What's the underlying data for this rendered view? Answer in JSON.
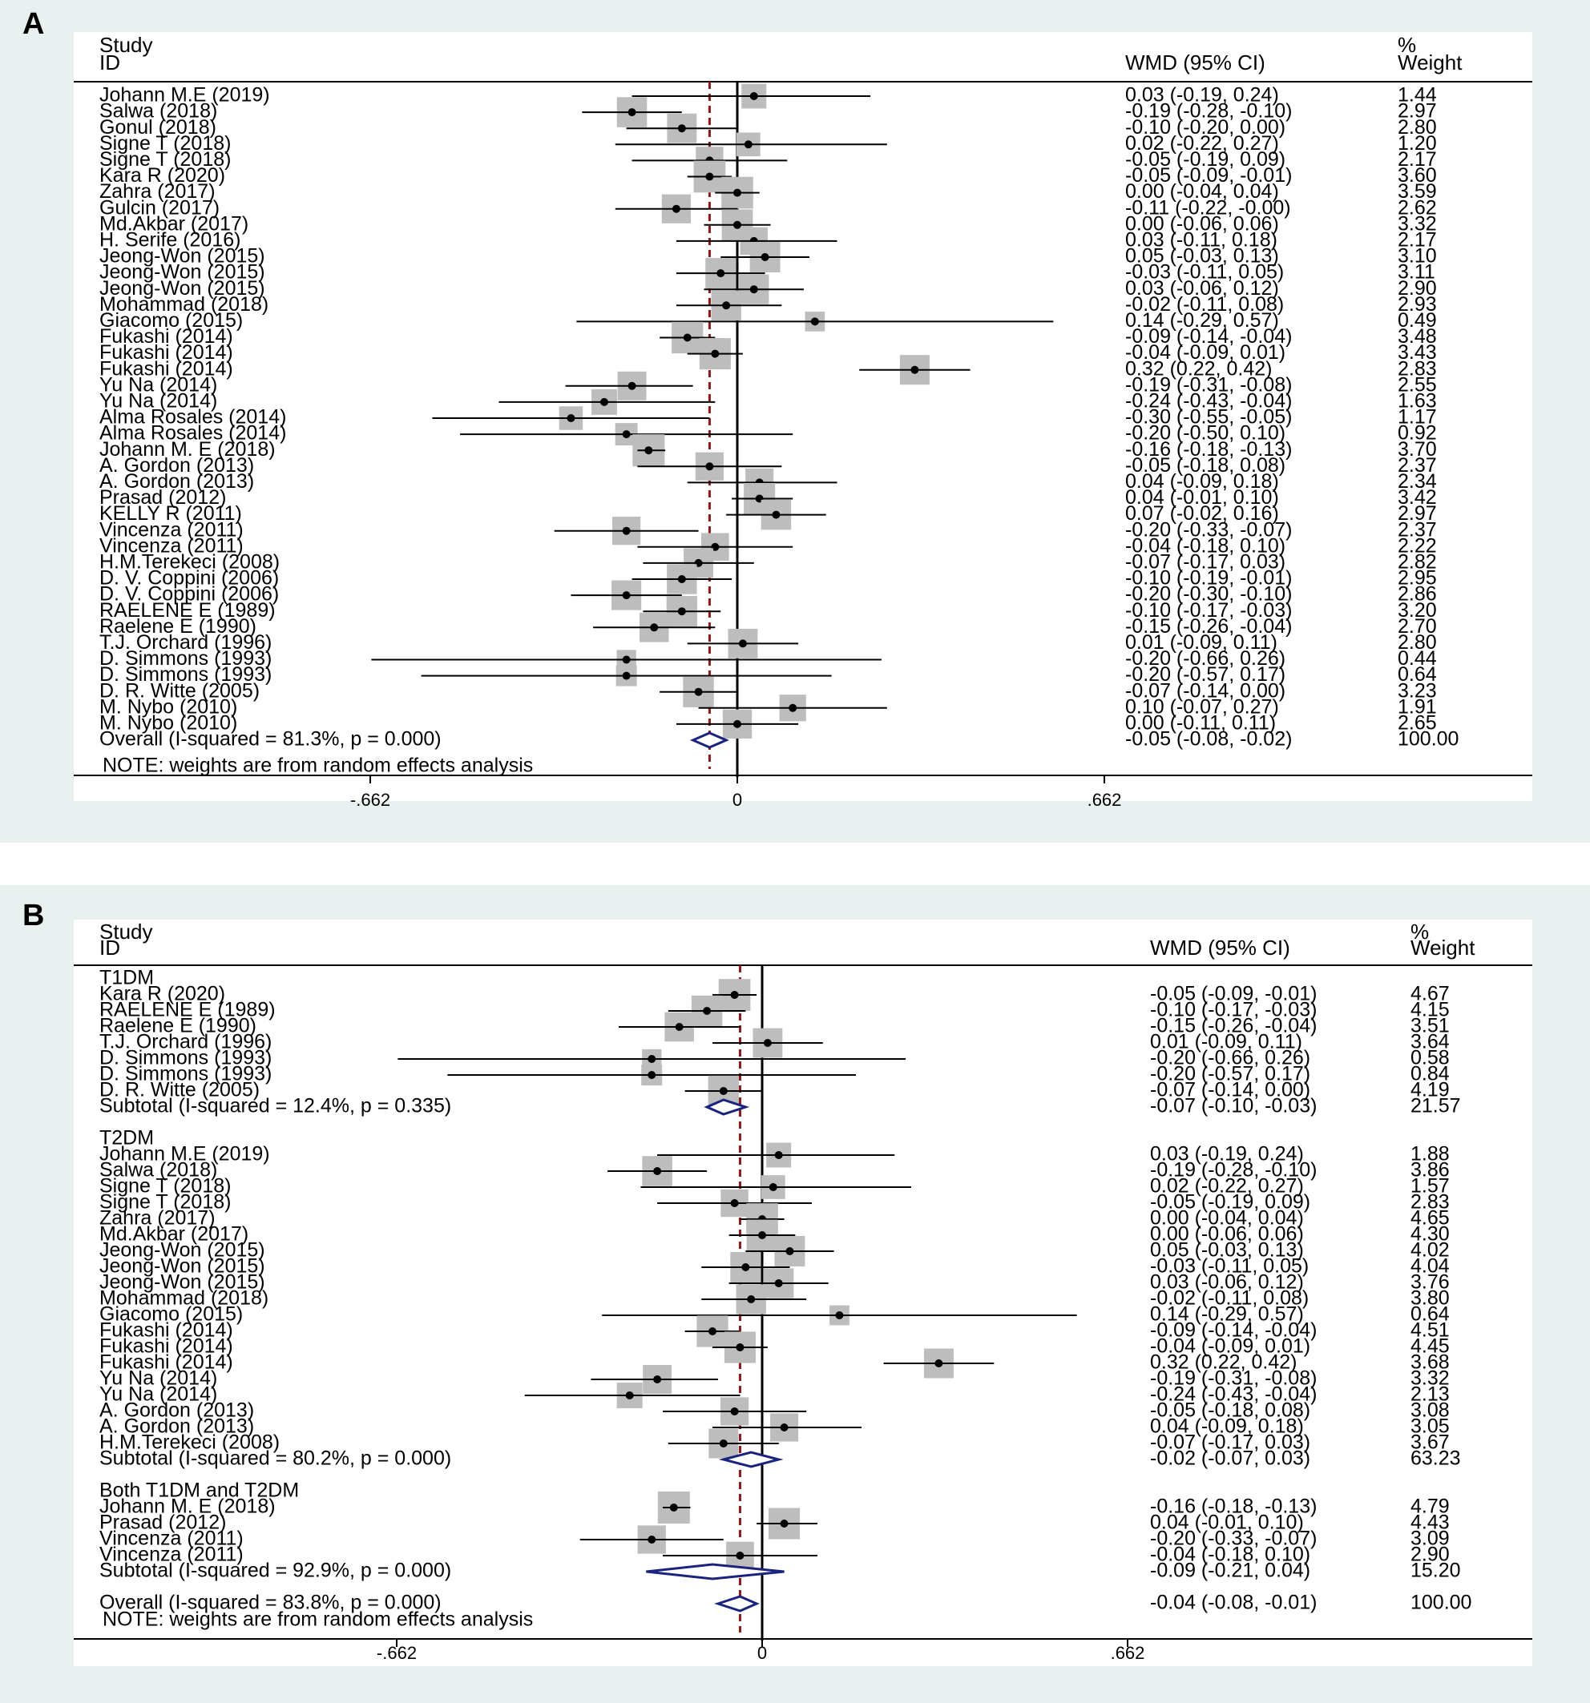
{
  "chart_data": [
    {
      "type": "forest",
      "panel_label": "A",
      "columns": {
        "study_header": [
          "Study",
          "ID"
        ],
        "effect_header": "WMD (95% CI)",
        "weight_header": [
          "%",
          "Weight"
        ]
      },
      "x_ticks": [
        -0.662,
        0,
        0.662
      ],
      "x_tick_labels": [
        "-.662",
        "0",
        ".662"
      ],
      "xlim": [
        -1.2,
        1.435
      ],
      "reference_line": -0.05,
      "studies": [
        {
          "label": "Johann M.E (2019)",
          "es": 0.03,
          "lo": -0.19,
          "hi": 0.24,
          "text": "0.03 (-0.19, 0.24)",
          "weight": "1.44"
        },
        {
          "label": "Salwa (2018)",
          "es": -0.19,
          "lo": -0.28,
          "hi": -0.1,
          "text": "-0.19 (-0.28, -0.10)",
          "weight": "2.97"
        },
        {
          "label": "Gonul (2018)",
          "es": -0.1,
          "lo": -0.2,
          "hi": 0.0,
          "text": "-0.10 (-0.20, 0.00)",
          "weight": "2.80"
        },
        {
          "label": "Signe T (2018)",
          "es": 0.02,
          "lo": -0.22,
          "hi": 0.27,
          "text": "0.02 (-0.22, 0.27)",
          "weight": "1.20"
        },
        {
          "label": "Signe T (2018)",
          "es": -0.05,
          "lo": -0.19,
          "hi": 0.09,
          "text": "-0.05 (-0.19, 0.09)",
          "weight": "2.17"
        },
        {
          "label": "Kara R (2020)",
          "es": -0.05,
          "lo": -0.09,
          "hi": -0.01,
          "text": "-0.05 (-0.09, -0.01)",
          "weight": "3.60"
        },
        {
          "label": "Zahra (2017)",
          "es": 0.0,
          "lo": -0.04,
          "hi": 0.04,
          "text": "0.00 (-0.04, 0.04)",
          "weight": "3.59"
        },
        {
          "label": "Gulcin (2017)",
          "es": -0.11,
          "lo": -0.22,
          "hi": -0.0,
          "text": "-0.11 (-0.22, -0.00)",
          "weight": "2.62"
        },
        {
          "label": "Md.Akbar (2017)",
          "es": 0.0,
          "lo": -0.06,
          "hi": 0.06,
          "text": "0.00 (-0.06, 0.06)",
          "weight": "3.32"
        },
        {
          "label": "H. Serife (2016)",
          "es": 0.03,
          "lo": -0.11,
          "hi": 0.18,
          "text": "0.03 (-0.11, 0.18)",
          "weight": "2.17"
        },
        {
          "label": "Jeong-Won (2015)",
          "es": 0.05,
          "lo": -0.03,
          "hi": 0.13,
          "text": "0.05 (-0.03, 0.13)",
          "weight": "3.10"
        },
        {
          "label": "Jeong-Won (2015)",
          "es": -0.03,
          "lo": -0.11,
          "hi": 0.05,
          "text": "-0.03 (-0.11, 0.05)",
          "weight": "3.11"
        },
        {
          "label": "Jeong-Won (2015)",
          "es": 0.03,
          "lo": -0.06,
          "hi": 0.12,
          "text": "0.03 (-0.06, 0.12)",
          "weight": "2.90"
        },
        {
          "label": "Mohammad (2018)",
          "es": -0.02,
          "lo": -0.11,
          "hi": 0.08,
          "text": "-0.02 (-0.11, 0.08)",
          "weight": "2.93"
        },
        {
          "label": "Giacomo (2015)",
          "es": 0.14,
          "lo": -0.29,
          "hi": 0.57,
          "text": "0.14 (-0.29, 0.57)",
          "weight": "0.49"
        },
        {
          "label": "Fukashi (2014)",
          "es": -0.09,
          "lo": -0.14,
          "hi": -0.04,
          "text": "-0.09 (-0.14, -0.04)",
          "weight": "3.48"
        },
        {
          "label": "Fukashi (2014)",
          "es": -0.04,
          "lo": -0.09,
          "hi": 0.01,
          "text": "-0.04 (-0.09, 0.01)",
          "weight": "3.43"
        },
        {
          "label": "Fukashi (2014)",
          "es": 0.32,
          "lo": 0.22,
          "hi": 0.42,
          "text": "0.32 (0.22, 0.42)",
          "weight": "2.83"
        },
        {
          "label": "Yu Na (2014)",
          "es": -0.19,
          "lo": -0.31,
          "hi": -0.08,
          "text": "-0.19 (-0.31, -0.08)",
          "weight": "2.55"
        },
        {
          "label": "Yu Na (2014)",
          "es": -0.24,
          "lo": -0.43,
          "hi": -0.04,
          "text": "-0.24 (-0.43, -0.04)",
          "weight": "1.63"
        },
        {
          "label": "Alma Rosales (2014)",
          "es": -0.3,
          "lo": -0.55,
          "hi": -0.05,
          "text": "-0.30 (-0.55, -0.05)",
          "weight": "1.17"
        },
        {
          "label": "Alma Rosales (2014)",
          "es": -0.2,
          "lo": -0.5,
          "hi": 0.1,
          "text": "-0.20 (-0.50, 0.10)",
          "weight": "0.92"
        },
        {
          "label": "Johann M. E (2018)",
          "es": -0.16,
          "lo": -0.18,
          "hi": -0.13,
          "text": "-0.16 (-0.18, -0.13)",
          "weight": "3.70"
        },
        {
          "label": "A. Gordon (2013)",
          "es": -0.05,
          "lo": -0.18,
          "hi": 0.08,
          "text": "-0.05 (-0.18, 0.08)",
          "weight": "2.37"
        },
        {
          "label": "A. Gordon (2013)",
          "es": 0.04,
          "lo": -0.09,
          "hi": 0.18,
          "text": "0.04 (-0.09, 0.18)",
          "weight": "2.34"
        },
        {
          "label": "Prasad (2012)",
          "es": 0.04,
          "lo": -0.01,
          "hi": 0.1,
          "text": "0.04 (-0.01, 0.10)",
          "weight": "3.42"
        },
        {
          "label": "KELLY R (2011)",
          "es": 0.07,
          "lo": -0.02,
          "hi": 0.16,
          "text": "0.07 (-0.02, 0.16)",
          "weight": "2.97"
        },
        {
          "label": "Vincenza (2011)",
          "es": -0.2,
          "lo": -0.33,
          "hi": -0.07,
          "text": "-0.20 (-0.33, -0.07)",
          "weight": "2.37"
        },
        {
          "label": "Vincenza (2011)",
          "es": -0.04,
          "lo": -0.18,
          "hi": 0.1,
          "text": "-0.04 (-0.18, 0.10)",
          "weight": "2.22"
        },
        {
          "label": "H.M.Terekeci (2008)",
          "es": -0.07,
          "lo": -0.17,
          "hi": 0.03,
          "text": "-0.07 (-0.17, 0.03)",
          "weight": "2.82"
        },
        {
          "label": "D. V. Coppini (2006)",
          "es": -0.1,
          "lo": -0.19,
          "hi": -0.01,
          "text": "-0.10 (-0.19, -0.01)",
          "weight": "2.95"
        },
        {
          "label": "D. V. Coppini (2006)",
          "es": -0.2,
          "lo": -0.3,
          "hi": -0.1,
          "text": "-0.20 (-0.30, -0.10)",
          "weight": "2.86"
        },
        {
          "label": "RAELENE E (1989)",
          "es": -0.1,
          "lo": -0.17,
          "hi": -0.03,
          "text": "-0.10 (-0.17, -0.03)",
          "weight": "3.20"
        },
        {
          "label": "Raelene E (1990)",
          "es": -0.15,
          "lo": -0.26,
          "hi": -0.04,
          "text": "-0.15 (-0.26, -0.04)",
          "weight": "2.70"
        },
        {
          "label": "T.J. Orchard (1996)",
          "es": 0.01,
          "lo": -0.09,
          "hi": 0.11,
          "text": "0.01 (-0.09, 0.11)",
          "weight": "2.80"
        },
        {
          "label": "D. Simmons (1993)",
          "es": -0.2,
          "lo": -0.66,
          "hi": 0.26,
          "text": "-0.20 (-0.66, 0.26)",
          "weight": "0.44"
        },
        {
          "label": "D. Simmons (1993)",
          "es": -0.2,
          "lo": -0.57,
          "hi": 0.17,
          "text": "-0.20 (-0.57, 0.17)",
          "weight": "0.64"
        },
        {
          "label": "D. R. Witte (2005)",
          "es": -0.07,
          "lo": -0.14,
          "hi": 0.0,
          "text": "-0.07 (-0.14, 0.00)",
          "weight": "3.23"
        },
        {
          "label": "M. Nybo (2010)",
          "es": 0.1,
          "lo": -0.07,
          "hi": 0.27,
          "text": "0.10 (-0.07, 0.27)",
          "weight": "1.91"
        },
        {
          "label": "M. Nybo (2010)",
          "es": 0.0,
          "lo": -0.11,
          "hi": 0.11,
          "text": "0.00 (-0.11, 0.11)",
          "weight": "2.65"
        }
      ],
      "overall": {
        "label": "Overall  (I-squared = 81.3%, p = 0.000)",
        "es": -0.05,
        "lo": -0.08,
        "hi": -0.02,
        "text": "-0.05 (-0.08, -0.02)",
        "weight": "100.00"
      },
      "note": "NOTE: weights are from random effects analysis"
    },
    {
      "type": "forest",
      "panel_label": "B",
      "columns": {
        "study_header": [
          "Study",
          "ID"
        ],
        "effect_header": "WMD (95% CI)",
        "weight_header": [
          "%",
          "Weight"
        ]
      },
      "x_ticks": [
        -0.662,
        0,
        0.662
      ],
      "x_tick_labels": [
        "-.662",
        "0",
        ".662"
      ],
      "xlim": [
        -1.24,
        1.35
      ],
      "reference_line": -0.04,
      "groups": [
        {
          "name": "T1DM",
          "studies": [
            {
              "label": "Kara R (2020)",
              "es": -0.05,
              "lo": -0.09,
              "hi": -0.01,
              "text": "-0.05 (-0.09, -0.01)",
              "weight": "4.67"
            },
            {
              "label": "RAELENE E (1989)",
              "es": -0.1,
              "lo": -0.17,
              "hi": -0.03,
              "text": "-0.10 (-0.17, -0.03)",
              "weight": "4.15"
            },
            {
              "label": "Raelene E (1990)",
              "es": -0.15,
              "lo": -0.26,
              "hi": -0.04,
              "text": "-0.15 (-0.26, -0.04)",
              "weight": "3.51"
            },
            {
              "label": "T.J. Orchard (1996)",
              "es": 0.01,
              "lo": -0.09,
              "hi": 0.11,
              "text": "0.01 (-0.09, 0.11)",
              "weight": "3.64"
            },
            {
              "label": "D. Simmons (1993)",
              "es": -0.2,
              "lo": -0.66,
              "hi": 0.26,
              "text": "-0.20 (-0.66, 0.26)",
              "weight": "0.58"
            },
            {
              "label": "D. Simmons (1993)",
              "es": -0.2,
              "lo": -0.57,
              "hi": 0.17,
              "text": "-0.20 (-0.57, 0.17)",
              "weight": "0.84"
            },
            {
              "label": "D. R. Witte (2005)",
              "es": -0.07,
              "lo": -0.14,
              "hi": 0.0,
              "text": "-0.07 (-0.14, 0.00)",
              "weight": "4.19"
            }
          ],
          "subtotal": {
            "label": "Subtotal  (I-squared = 12.4%, p = 0.335)",
            "es": -0.07,
            "lo": -0.1,
            "hi": -0.03,
            "text": "-0.07 (-0.10, -0.03)",
            "weight": "21.57"
          }
        },
        {
          "name": "T2DM",
          "studies": [
            {
              "label": "Johann M.E (2019)",
              "es": 0.03,
              "lo": -0.19,
              "hi": 0.24,
              "text": "0.03 (-0.19, 0.24)",
              "weight": "1.88"
            },
            {
              "label": "Salwa (2018)",
              "es": -0.19,
              "lo": -0.28,
              "hi": -0.1,
              "text": "-0.19 (-0.28, -0.10)",
              "weight": "3.86"
            },
            {
              "label": "Signe T (2018)",
              "es": 0.02,
              "lo": -0.22,
              "hi": 0.27,
              "text": "0.02 (-0.22, 0.27)",
              "weight": "1.57"
            },
            {
              "label": "Signe T (2018)",
              "es": -0.05,
              "lo": -0.19,
              "hi": 0.09,
              "text": "-0.05 (-0.19, 0.09)",
              "weight": "2.83"
            },
            {
              "label": "Zahra (2017)",
              "es": 0.0,
              "lo": -0.04,
              "hi": 0.04,
              "text": "0.00 (-0.04, 0.04)",
              "weight": "4.65"
            },
            {
              "label": "Md.Akbar (2017)",
              "es": 0.0,
              "lo": -0.06,
              "hi": 0.06,
              "text": "0.00 (-0.06, 0.06)",
              "weight": "4.30"
            },
            {
              "label": "Jeong-Won (2015)",
              "es": 0.05,
              "lo": -0.03,
              "hi": 0.13,
              "text": "0.05 (-0.03, 0.13)",
              "weight": "4.02"
            },
            {
              "label": "Jeong-Won (2015)",
              "es": -0.03,
              "lo": -0.11,
              "hi": 0.05,
              "text": "-0.03 (-0.11, 0.05)",
              "weight": "4.04"
            },
            {
              "label": "Jeong-Won (2015)",
              "es": 0.03,
              "lo": -0.06,
              "hi": 0.12,
              "text": "0.03 (-0.06, 0.12)",
              "weight": "3.76"
            },
            {
              "label": "Mohammad (2018)",
              "es": -0.02,
              "lo": -0.11,
              "hi": 0.08,
              "text": "-0.02 (-0.11, 0.08)",
              "weight": "3.80"
            },
            {
              "label": "Giacomo (2015)",
              "es": 0.14,
              "lo": -0.29,
              "hi": 0.57,
              "text": "0.14 (-0.29, 0.57)",
              "weight": "0.64"
            },
            {
              "label": "Fukashi (2014)",
              "es": -0.09,
              "lo": -0.14,
              "hi": -0.04,
              "text": "-0.09 (-0.14, -0.04)",
              "weight": "4.51"
            },
            {
              "label": "Fukashi (2014)",
              "es": -0.04,
              "lo": -0.09,
              "hi": 0.01,
              "text": "-0.04 (-0.09, 0.01)",
              "weight": "4.45"
            },
            {
              "label": "Fukashi (2014)",
              "es": 0.32,
              "lo": 0.22,
              "hi": 0.42,
              "text": "0.32 (0.22, 0.42)",
              "weight": "3.68"
            },
            {
              "label": "Yu Na (2014)",
              "es": -0.19,
              "lo": -0.31,
              "hi": -0.08,
              "text": "-0.19 (-0.31, -0.08)",
              "weight": "3.32"
            },
            {
              "label": "Yu Na (2014)",
              "es": -0.24,
              "lo": -0.43,
              "hi": -0.04,
              "text": "-0.24 (-0.43, -0.04)",
              "weight": "2.13"
            },
            {
              "label": "A. Gordon (2013)",
              "es": -0.05,
              "lo": -0.18,
              "hi": 0.08,
              "text": "-0.05 (-0.18, 0.08)",
              "weight": "3.08"
            },
            {
              "label": "A. Gordon (2013)",
              "es": 0.04,
              "lo": -0.09,
              "hi": 0.18,
              "text": "0.04 (-0.09, 0.18)",
              "weight": "3.05"
            },
            {
              "label": "H.M.Terekeci (2008)",
              "es": -0.07,
              "lo": -0.17,
              "hi": 0.03,
              "text": "-0.07 (-0.17, 0.03)",
              "weight": "3.67"
            }
          ],
          "subtotal": {
            "label": "Subtotal  (I-squared = 80.2%, p = 0.000)",
            "es": -0.02,
            "lo": -0.07,
            "hi": 0.03,
            "text": "-0.02 (-0.07, 0.03)",
            "weight": "63.23"
          }
        },
        {
          "name": "Both T1DM and T2DM",
          "studies": [
            {
              "label": "Johann M. E (2018)",
              "es": -0.16,
              "lo": -0.18,
              "hi": -0.13,
              "text": "-0.16 (-0.18, -0.13)",
              "weight": "4.79"
            },
            {
              "label": "Prasad (2012)",
              "es": 0.04,
              "lo": -0.01,
              "hi": 0.1,
              "text": "0.04 (-0.01, 0.10)",
              "weight": "4.43"
            },
            {
              "label": "Vincenza (2011)",
              "es": -0.2,
              "lo": -0.33,
              "hi": -0.07,
              "text": "-0.20 (-0.33, -0.07)",
              "weight": "3.09"
            },
            {
              "label": "Vincenza (2011)",
              "es": -0.04,
              "lo": -0.18,
              "hi": 0.1,
              "text": "-0.04 (-0.18, 0.10)",
              "weight": "2.90"
            }
          ],
          "subtotal": {
            "label": "Subtotal  (I-squared = 92.9%, p = 0.000)",
            "es": -0.09,
            "lo": -0.21,
            "hi": 0.04,
            "text": "-0.09 (-0.21, 0.04)",
            "weight": "15.20"
          }
        }
      ],
      "overall": {
        "label": "Overall  (I-squared = 83.8%, p = 0.000)",
        "es": -0.04,
        "lo": -0.08,
        "hi": -0.01,
        "text": "-0.04 (-0.08, -0.01)",
        "weight": "100.00"
      },
      "note": "NOTE: weights are from random effects analysis"
    }
  ],
  "colors": {
    "outer_bg": "#e8f0f0",
    "plot_bg": "#ffffff",
    "box": "#bdbdbd",
    "diamond": "#1a237e",
    "reference_line": "#8b1a1a",
    "text": "#000000"
  }
}
